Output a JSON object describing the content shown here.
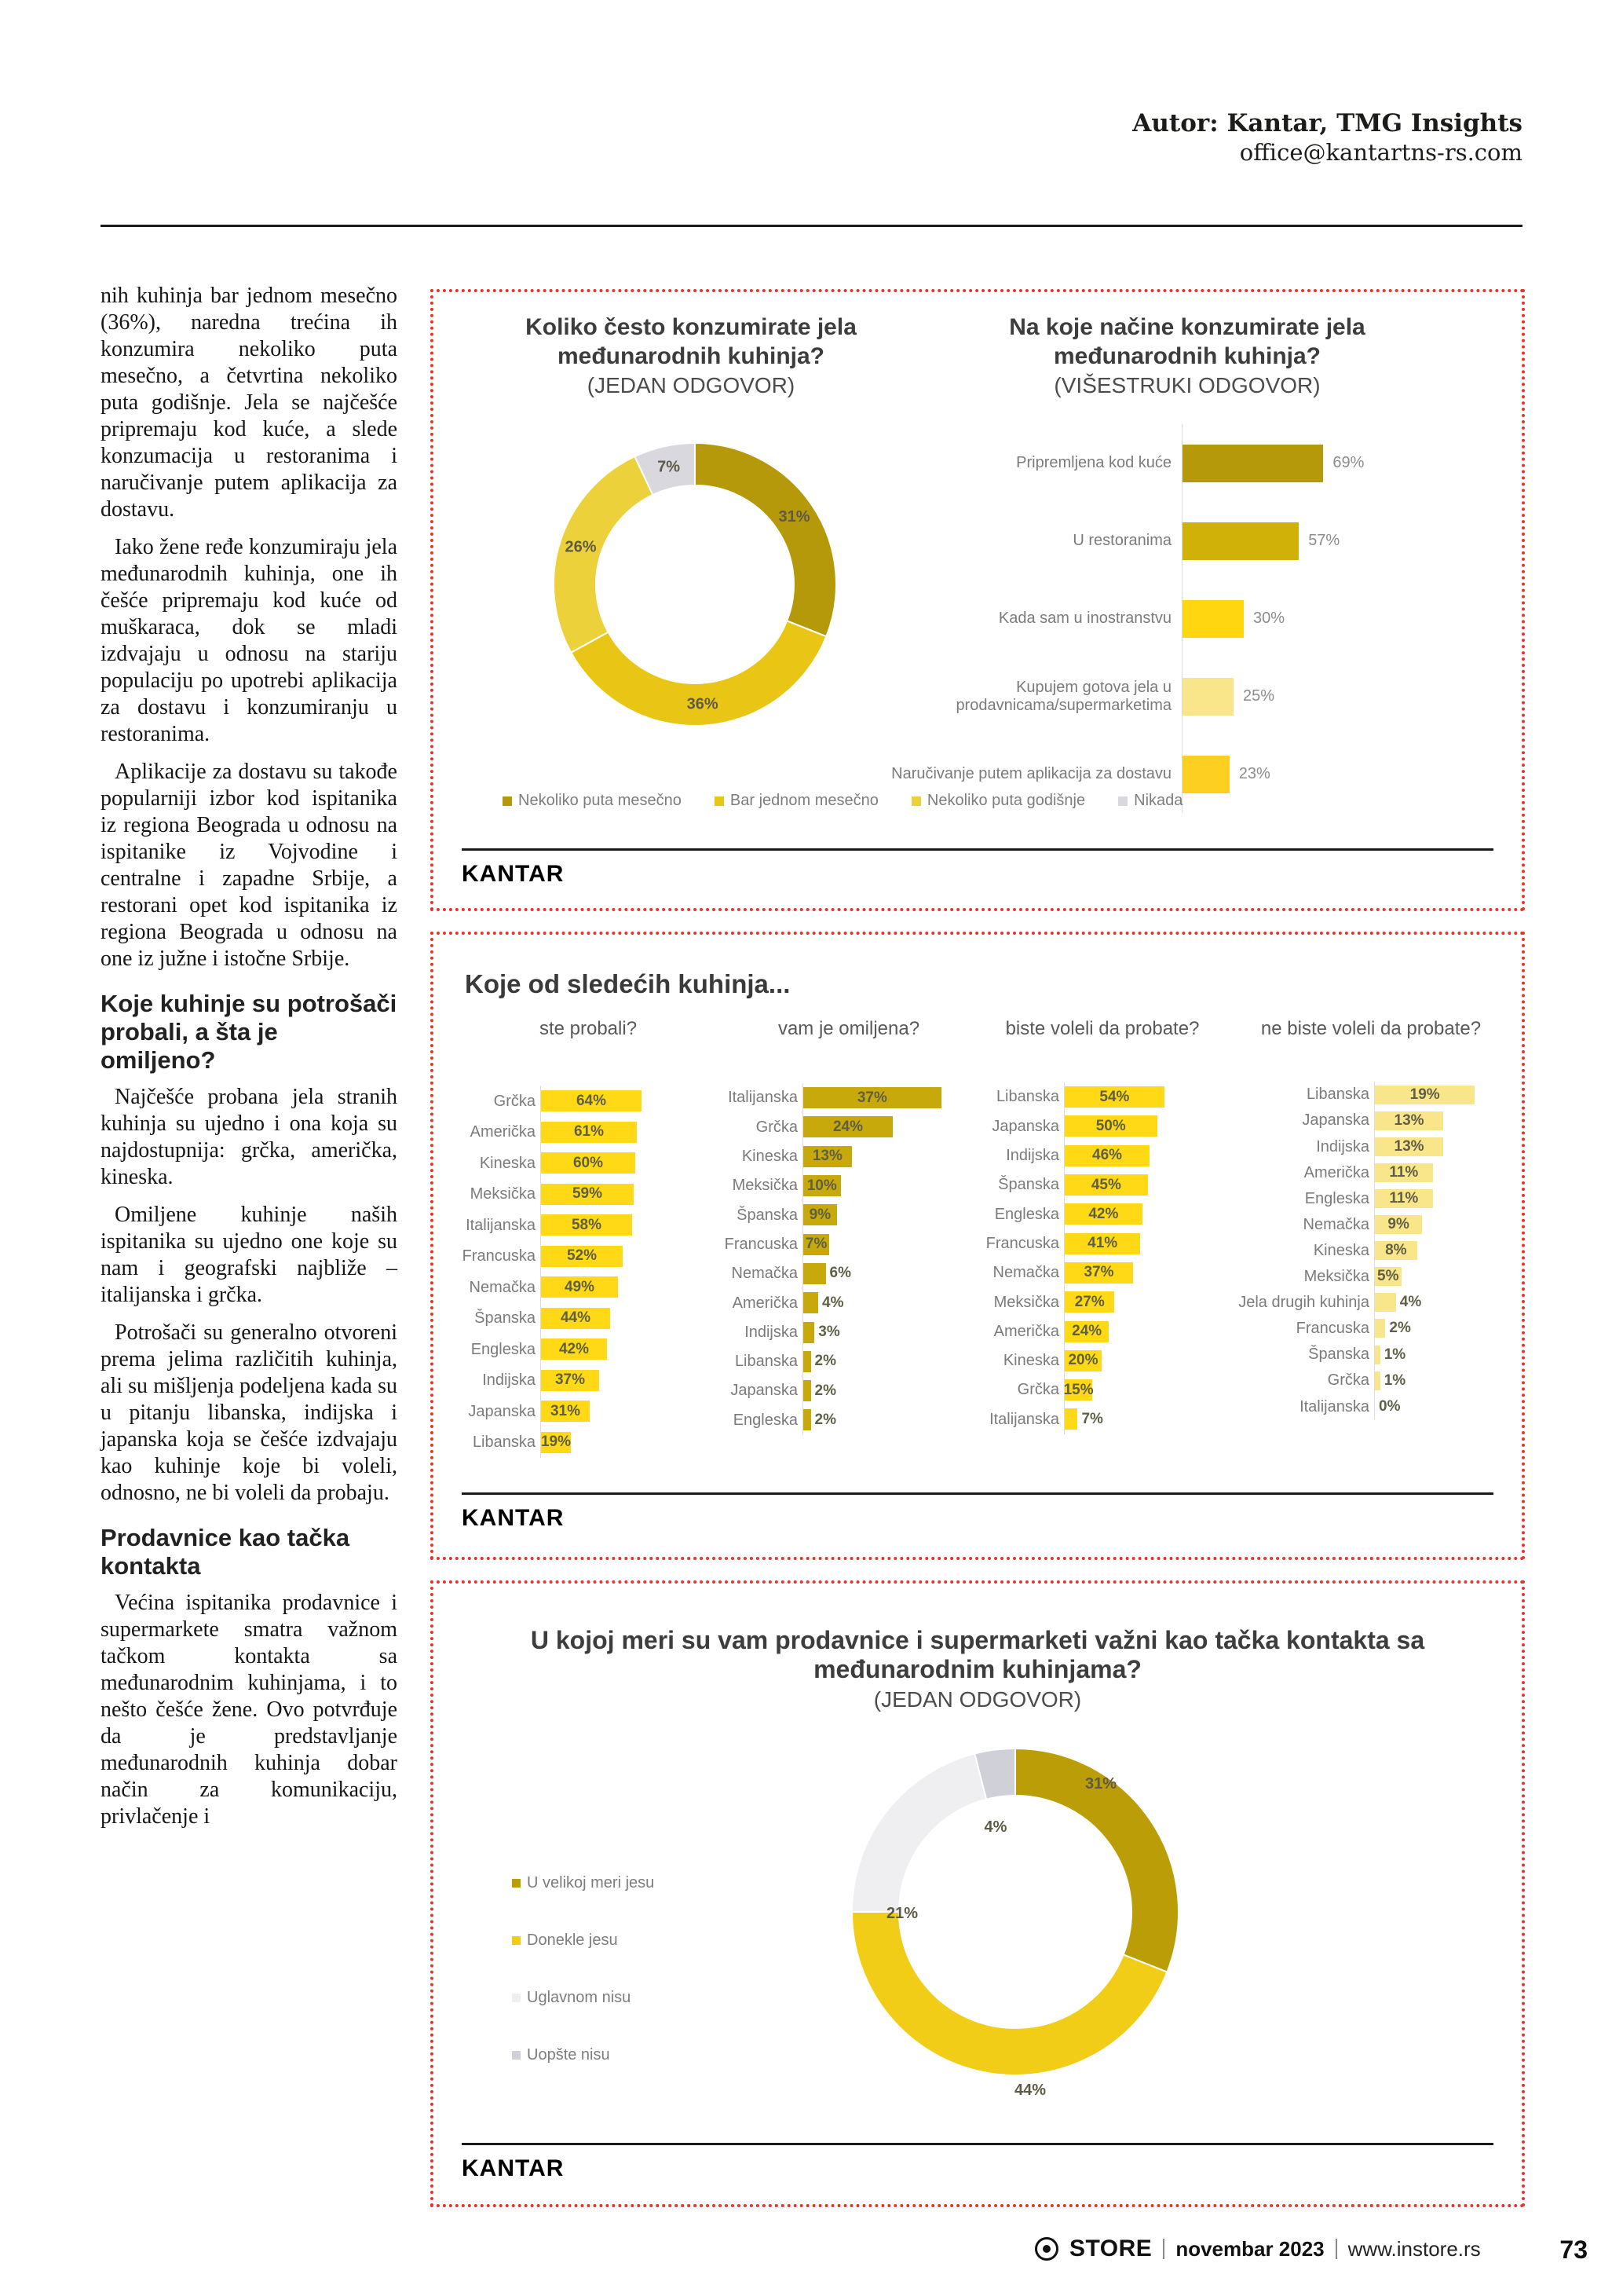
{
  "header": {
    "author": "Autor: Kantar, TMG Insights",
    "email": "office@kantartns-rs.com"
  },
  "article": {
    "p1": "nih kuhinja bar jednom mesečno (36%), naredna trećina ih konzumira nekoliko puta mesečno, a četvrtina nekoliko puta godišnje. Jela se najčešće pripremaju kod kuće, a slede konzumacija u restoranima i naručivanje putem aplikacija za dostavu.",
    "p2": "Iako žene ređe konzumiraju jela međunarodnih kuhinja, one ih češće pripremaju kod kuće od muškaraca, dok se mladi izdvajaju u odnosu na stariju populaciju po upotrebi aplikacija za dostavu i konzumiranju u restoranima.",
    "p3": "Aplikacije za dostavu su takođe popularniji izbor kod ispitanika iz regiona Beograda u odnosu na ispitanike iz Vojvodine i centralne i zapadne Srbije, a restorani opet kod ispitanika iz regiona Beograda u odnosu na one iz južne i istočne Srbije.",
    "heading1": "Koje kuhinje su potrošači probali, a šta je omiljeno?",
    "p4": "Najčešće probana jela stranih kuhinja su ujedno i ona koja su najdostupnija: grčka, američka, kineska.",
    "p5": "Omiljene kuhinje naših ispitanika su ujedno one koje su nam i geografski najbliže – italijanska i grčka.",
    "p6": "Potrošači su generalno otvoreni prema jelima različitih kuhinja, ali su mišljenja podeljena kada su u pitanju libanska, indijska i japanska koja se češće izdvajaju kao kuhinje koje bi voleli, odnosno, ne bi voleli da probaju.",
    "heading2": "Prodavnice kao tačka kontakta",
    "p7": "Većina ispitanika prodavnice i supermarkete smatra važnom tačkom kontakta sa međunarodnim kuhinjama, i to nešto češće žene. Ovo potvrđuje da je predstavljanje međunarodnih kuhinja dobar način za komunikaciju, privlačenje i"
  },
  "boxes": {
    "box2_title": "Koje od sledećih kuhinja...",
    "kantar_logo": "KANTAR"
  },
  "chart_data": [
    {
      "id": "freq-donut",
      "type": "pie",
      "title": "Koliko često konzumirate jela međunarodnih kuhinja?",
      "subtitle": "(JEDAN ODGOVOR)",
      "labels": [
        "Nekoliko puta mesečno",
        "Bar jednom mesečno",
        "Nekoliko puta godišnje",
        "Nikada"
      ],
      "values": [
        31,
        36,
        26,
        7
      ],
      "colors": [
        "#b5990a",
        "#e9c616",
        "#ecd13a",
        "#d8d8de"
      ],
      "legend_position": "bottom"
    },
    {
      "id": "ways-bar",
      "type": "bar",
      "title": "Na koje načine konzumirate jela međunarodnih kuhinja?",
      "subtitle": "(VIŠESTRUKI ODGOVOR)",
      "categories": [
        "Pripremljena kod kuće",
        "U restoranima",
        "Kada sam u inostranstvu",
        "Kupujem gotova jela u prodavnicama/supermarketima",
        "Naručivanje putem aplikacija za dostavu"
      ],
      "values": [
        69,
        57,
        30,
        25,
        23
      ],
      "colors": [
        "#b5990a",
        "#cfb108",
        "#ffd60f",
        "#f9e68b",
        "#fccf20"
      ],
      "xlim": [
        0,
        100
      ]
    },
    {
      "id": "cuisines-tried",
      "type": "bar",
      "column_header": "ste probali?",
      "categories": [
        "Grčka",
        "Američka",
        "Kineska",
        "Meksička",
        "Italijanska",
        "Francuska",
        "Nemačka",
        "Španska",
        "Engleska",
        "Indijska",
        "Japanska",
        "Libanska"
      ],
      "values": [
        64,
        61,
        60,
        59,
        58,
        52,
        49,
        44,
        42,
        37,
        31,
        19
      ],
      "color": "#ffd915"
    },
    {
      "id": "cuisines-favorite",
      "type": "bar",
      "column_header": "vam je omiljena?",
      "categories": [
        "Italijanska",
        "Grčka",
        "Kineska",
        "Meksička",
        "Španska",
        "Francuska",
        "Nemačka",
        "Američka",
        "Indijska",
        "Libanska",
        "Japanska",
        "Engleska"
      ],
      "values": [
        37,
        24,
        13,
        10,
        9,
        7,
        6,
        4,
        3,
        2,
        2,
        2
      ],
      "color": "#c8a90b"
    },
    {
      "id": "cuisines-want",
      "type": "bar",
      "column_header": "biste voleli da probate?",
      "categories": [
        "Libanska",
        "Japanska",
        "Indijska",
        "Španska",
        "Engleska",
        "Francuska",
        "Nemačka",
        "Meksička",
        "Američka",
        "Kineska",
        "Grčka",
        "Italijanska"
      ],
      "values": [
        54,
        50,
        46,
        45,
        42,
        41,
        37,
        27,
        24,
        20,
        15,
        7
      ],
      "color": "#ffd915"
    },
    {
      "id": "cuisines-notwant",
      "type": "bar",
      "column_header": "ne biste voleli da probate?",
      "categories": [
        "Libanska",
        "Japanska",
        "Indijska",
        "Američka",
        "Engleska",
        "Nemačka",
        "Kineska",
        "Meksička",
        "Jela drugih kuhinja",
        "Francuska",
        "Španska",
        "Grčka",
        "Italijanska"
      ],
      "values": [
        19,
        13,
        13,
        11,
        11,
        9,
        8,
        5,
        4,
        2,
        1,
        1,
        0
      ],
      "color": "#f9e68b"
    },
    {
      "id": "stores-donut",
      "type": "pie",
      "title": "U kojoj meri su vam prodavnice i supermarketi važni kao tačka kontakta sa međunarodnim kuhinjama?",
      "subtitle": "(JEDAN ODGOVOR)",
      "labels": [
        "U velikoj meri jesu",
        "Donekle jesu",
        "Uglavnom nisu",
        "Uopšte nisu"
      ],
      "values": [
        31,
        44,
        21,
        4
      ],
      "colors": [
        "#bb9d08",
        "#f1cd17",
        "#efeff2",
        "#cfd0d8"
      ],
      "legend_position": "left"
    }
  ],
  "footer": {
    "magazine": "STORE",
    "issue": "novembar 2023",
    "site": "www.instore.rs",
    "page_number": "73"
  }
}
